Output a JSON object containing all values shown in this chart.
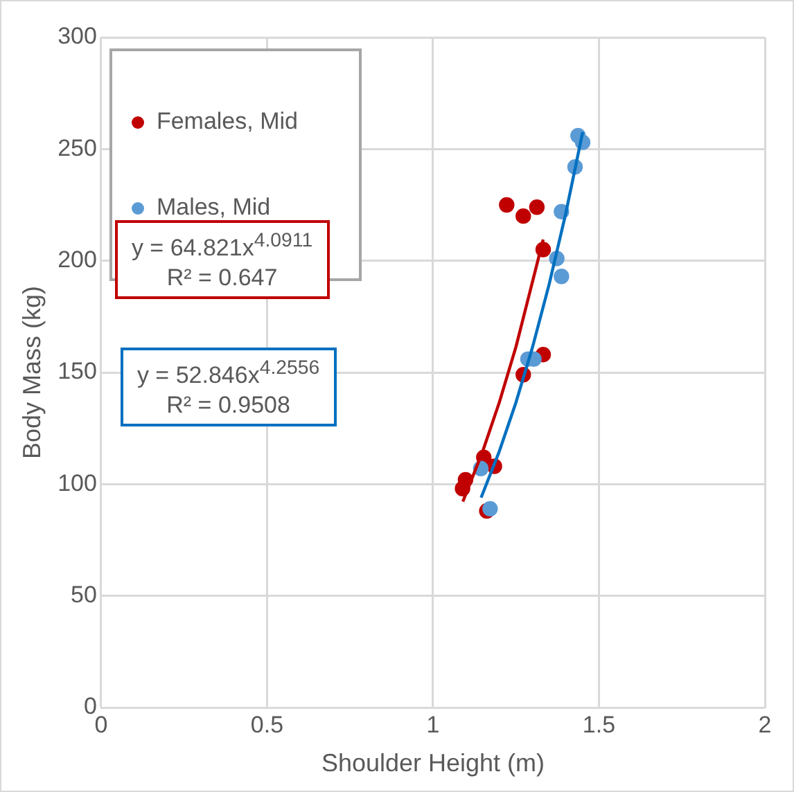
{
  "chart_data": {
    "type": "scatter",
    "xlabel": "Shoulder Height (m)",
    "ylabel": "Body Mass (kg)",
    "xlim": [
      0,
      2
    ],
    "xticks": [
      0,
      0.5,
      1,
      1.5,
      2
    ],
    "ylim": [
      0,
      300
    ],
    "yticks": [
      0,
      50,
      100,
      150,
      200,
      250,
      300
    ],
    "grid": true,
    "legend": "top left",
    "marker": "circle",
    "series": [
      {
        "name": "Females, Mid",
        "color": "#c00000",
        "x": [
          1.222,
          1.272,
          1.313,
          1.332,
          1.332,
          1.272,
          1.153,
          1.185,
          1.098,
          1.089,
          1.162
        ],
        "values": [
          225,
          220,
          224,
          205,
          158,
          149,
          112,
          108,
          102,
          98,
          88
        ]
      },
      {
        "name": "Males, Mid",
        "color": "#5b9bd5",
        "x": [
          1.437,
          1.451,
          1.428,
          1.387,
          1.373,
          1.387,
          1.286,
          1.304,
          1.144,
          1.172
        ],
        "values": [
          256,
          253,
          242,
          222,
          201,
          193,
          156,
          156,
          107,
          89
        ]
      },
      {
        "type": "line",
        "color": "#c00000",
        "marker": "none",
        "x": [
          1.09,
          1.15,
          1.2,
          1.25,
          1.332
        ],
        "values": [
          92.2,
          114.8,
          136.7,
          161.5,
          209.5
        ]
      },
      {
        "type": "line",
        "color": "#0070c0",
        "marker": "none",
        "x": [
          1.145,
          1.2,
          1.25,
          1.3,
          1.35,
          1.4,
          1.451
        ],
        "values": [
          94.0,
          114.8,
          136.6,
          161.4,
          189.5,
          221.2,
          257.6
        ]
      }
    ],
    "annotations": [
      "y = 64.821x$^{4.0911}$\nR² = 0.647",
      "y = 52.846x$^{4.2556}$\nR² = 0.9508"
    ]
  }
}
